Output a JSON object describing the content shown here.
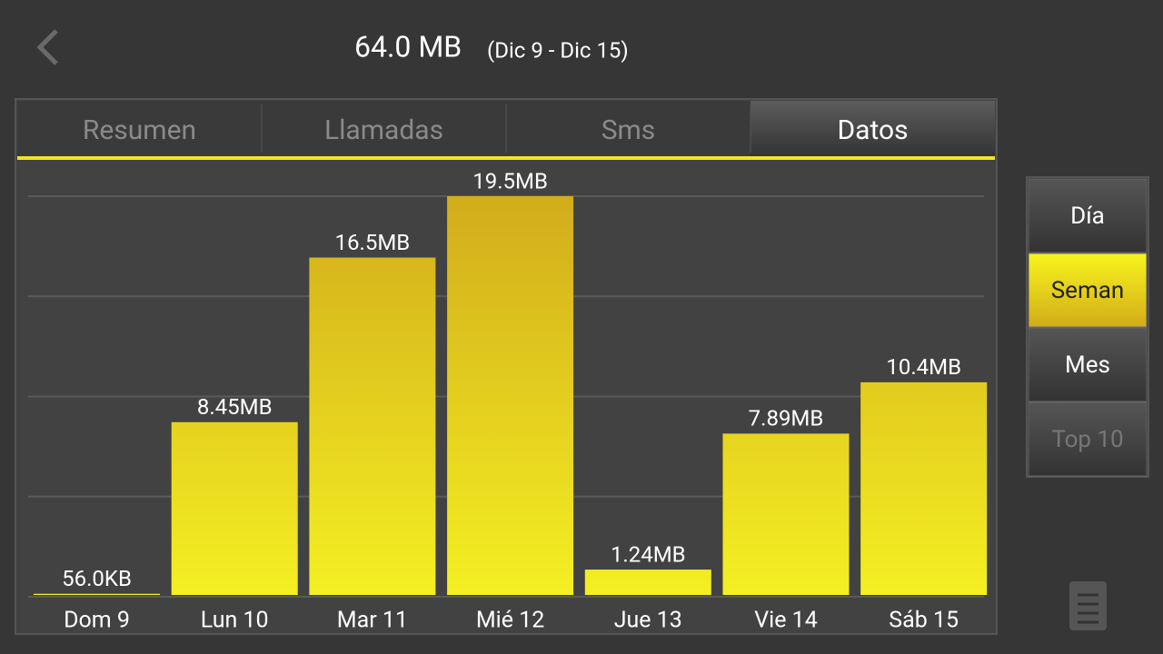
{
  "header": {
    "title": "64.0 MB",
    "subtitle": "(Dic 9 - Dic 15)"
  },
  "tabs": [
    "Resumen",
    "Llamadas",
    "Sms",
    "Datos"
  ],
  "period_buttons": [
    "Día",
    "Seman",
    "Mes",
    "Top 10"
  ],
  "chart_data": {
    "type": "bar",
    "color": "#f4ef22",
    "categories": [
      "Dom 9",
      "Lun 10",
      "Mar 11",
      "Mié 12",
      "Jue 13",
      "Vie 14",
      "Sáb 15"
    ],
    "values": [
      0.056,
      8.45,
      16.5,
      19.5,
      1.24,
      7.89,
      10.4
    ],
    "value_labels": [
      "56.0KB",
      "8.45MB",
      "16.5MB",
      "19.5MB",
      "1.24MB",
      "7.89MB",
      "10.4MB"
    ]
  }
}
